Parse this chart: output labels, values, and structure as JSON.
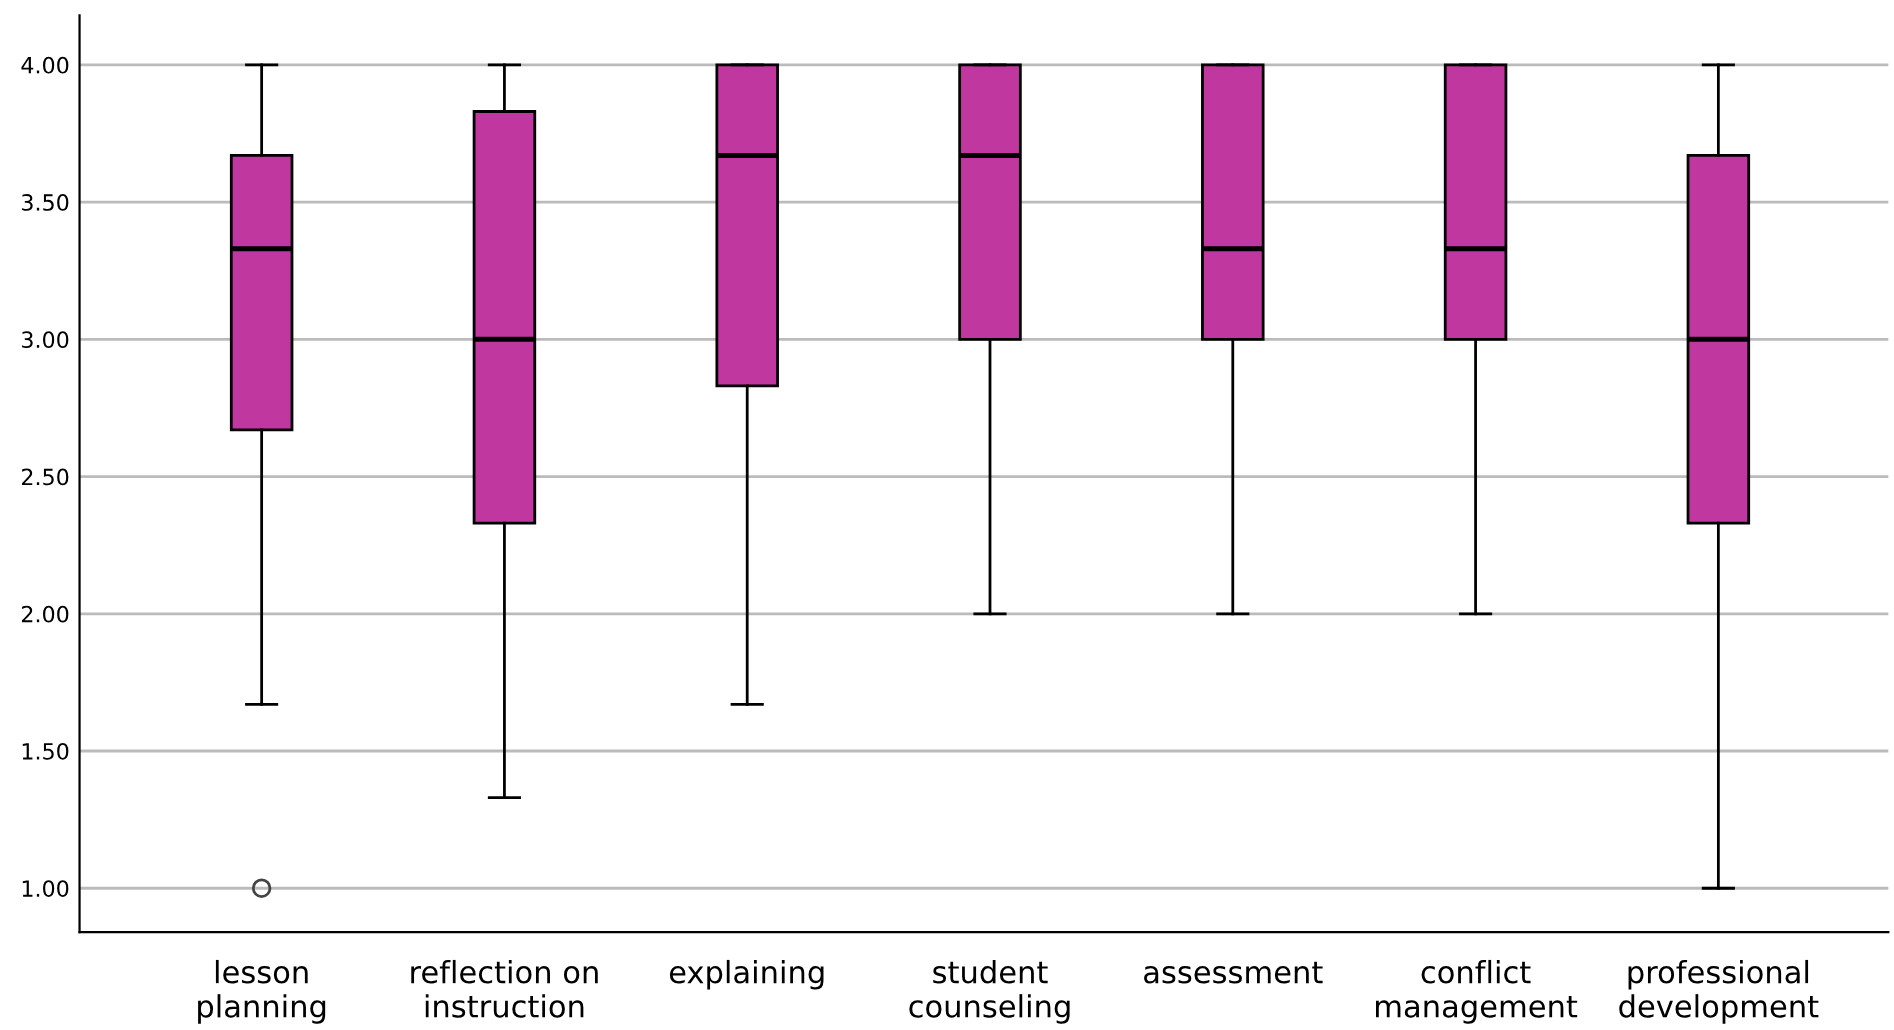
{
  "chart_data": {
    "type": "box",
    "categories": [
      "lesson\nplanning",
      "reflection on\ninstruction",
      "explaining",
      "student\ncounseling",
      "assessment",
      "conflict\nmanagement",
      "professional\ndevelopment"
    ],
    "color": "#c0379f",
    "boxes": [
      {
        "low": 1.67,
        "q1": 2.67,
        "median": 3.33,
        "q3": 3.67,
        "high": 4.0,
        "outliers": [
          1.0
        ]
      },
      {
        "low": 1.33,
        "q1": 2.33,
        "median": 3.0,
        "q3": 3.83,
        "high": 4.0
      },
      {
        "low": 1.67,
        "q1": 2.83,
        "median": 3.67,
        "q3": 4.0,
        "high": 4.0
      },
      {
        "low": 2.0,
        "q1": 3.0,
        "median": 3.67,
        "q3": 4.0,
        "high": 4.0
      },
      {
        "low": 2.0,
        "q1": 3.0,
        "median": 3.33,
        "q3": 4.0,
        "high": 4.0
      },
      {
        "low": 2.0,
        "q1": 3.0,
        "median": 3.33,
        "q3": 4.0,
        "high": 4.0
      },
      {
        "low": 1.0,
        "q1": 2.33,
        "median": 3.0,
        "q3": 3.67,
        "high": 4.0
      }
    ],
    "ylim": [
      0.84,
      4.18
    ],
    "yticks": [
      {
        "value": 1.0,
        "label": "1.00"
      },
      {
        "value": 1.5,
        "label": "1.50"
      },
      {
        "value": 2.0,
        "label": "2.00"
      },
      {
        "value": 2.5,
        "label": "2.50"
      },
      {
        "value": 3.0,
        "label": "3.00"
      },
      {
        "value": 3.5,
        "label": "3.50"
      },
      {
        "value": 4.0,
        "label": "4.00"
      }
    ],
    "grid": "y"
  }
}
